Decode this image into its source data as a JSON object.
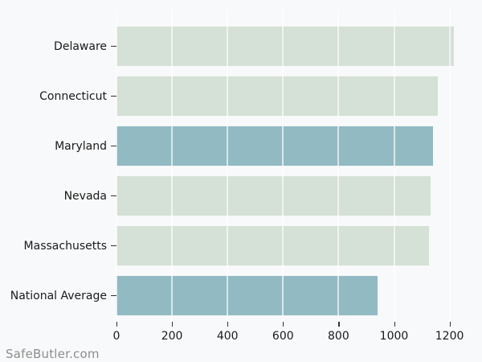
{
  "watermark": "SafeButler.com",
  "chart_data": {
    "type": "bar",
    "orientation": "horizontal",
    "title": "",
    "xlabel": "",
    "ylabel": "",
    "categories": [
      "Delaware",
      "Connecticut",
      "Maryland",
      "Nevada",
      "Massachusetts",
      "National Average"
    ],
    "values": [
      1215,
      1157,
      1140,
      1131,
      1126,
      941
    ],
    "highlighted_categories": [
      "Maryland",
      "National Average"
    ],
    "x_ticks": [
      0,
      200,
      400,
      600,
      800,
      1000,
      1200
    ],
    "xlim": [
      0,
      1285
    ],
    "grid": true,
    "legend": false,
    "colors": {
      "bar_default": "#d5e0d6",
      "bar_highlight": "#92bac3",
      "background": "#f8f9fa",
      "gridline": "#ffffff",
      "axis_text": "#1a1a1a",
      "tick_mark": "#333333",
      "watermark_text": "#8d8d8d"
    }
  }
}
